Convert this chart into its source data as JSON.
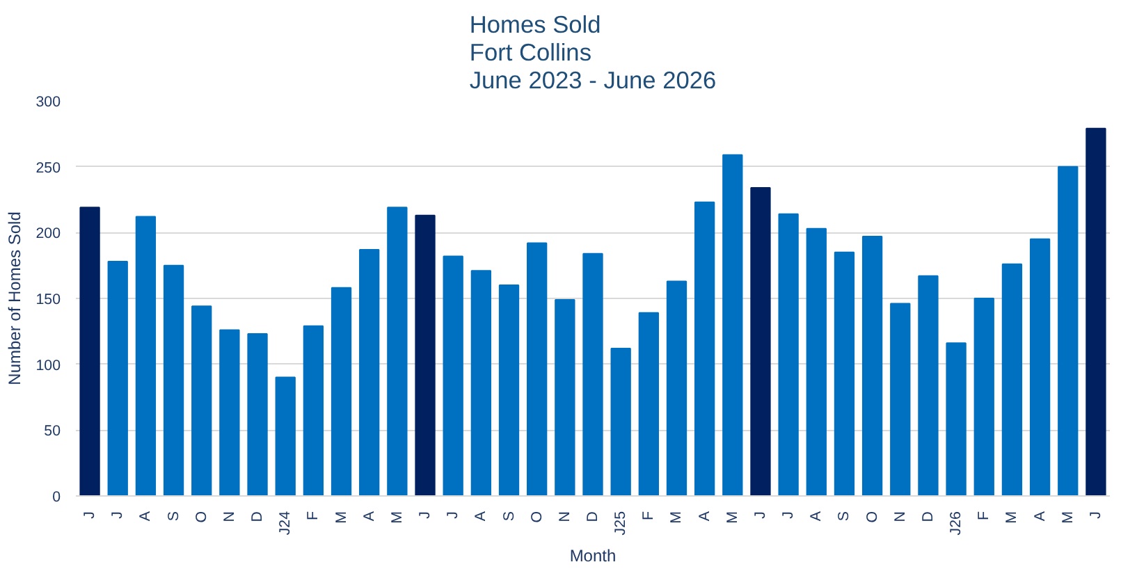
{
  "chart_data": {
    "type": "bar",
    "title": "Homes Sold\nFort Collins\nJune 2023 - June 2026",
    "xlabel": "Month",
    "ylabel": "Number of Homes Sold",
    "categories": [
      "J",
      "J",
      "A",
      "S",
      "O",
      "N",
      "D",
      "J24",
      "F",
      "M",
      "A",
      "M",
      "J",
      "J",
      "A",
      "S",
      "O",
      "N",
      "D",
      "J25",
      "F",
      "M",
      "A",
      "M",
      "J",
      "J",
      "A",
      "S",
      "O",
      "N",
      "D",
      "J26",
      "F",
      "M",
      "A",
      "M",
      "J"
    ],
    "values": [
      219,
      178,
      212,
      175,
      144,
      126,
      123,
      90,
      129,
      158,
      187,
      219,
      213,
      182,
      171,
      160,
      192,
      149,
      184,
      112,
      139,
      163,
      223,
      259,
      234,
      214,
      203,
      185,
      197,
      146,
      167,
      116,
      150,
      176,
      195,
      250,
      279
    ],
    "colors": [
      "#002060",
      "#0070c0",
      "#0070c0",
      "#0070c0",
      "#0070c0",
      "#0070c0",
      "#0070c0",
      "#0070c0",
      "#0070c0",
      "#0070c0",
      "#0070c0",
      "#0070c0",
      "#002060",
      "#0070c0",
      "#0070c0",
      "#0070c0",
      "#0070c0",
      "#0070c0",
      "#0070c0",
      "#0070c0",
      "#0070c0",
      "#0070c0",
      "#0070c0",
      "#0070c0",
      "#002060",
      "#0070c0",
      "#0070c0",
      "#0070c0",
      "#0070c0",
      "#0070c0",
      "#0070c0",
      "#0070c0",
      "#0070c0",
      "#0070c0",
      "#0070c0",
      "#0070c0",
      "#002060"
    ],
    "ylim": [
      0,
      300
    ],
    "yticks": [
      0,
      50,
      100,
      150,
      200,
      250,
      300
    ],
    "grid": "y"
  }
}
